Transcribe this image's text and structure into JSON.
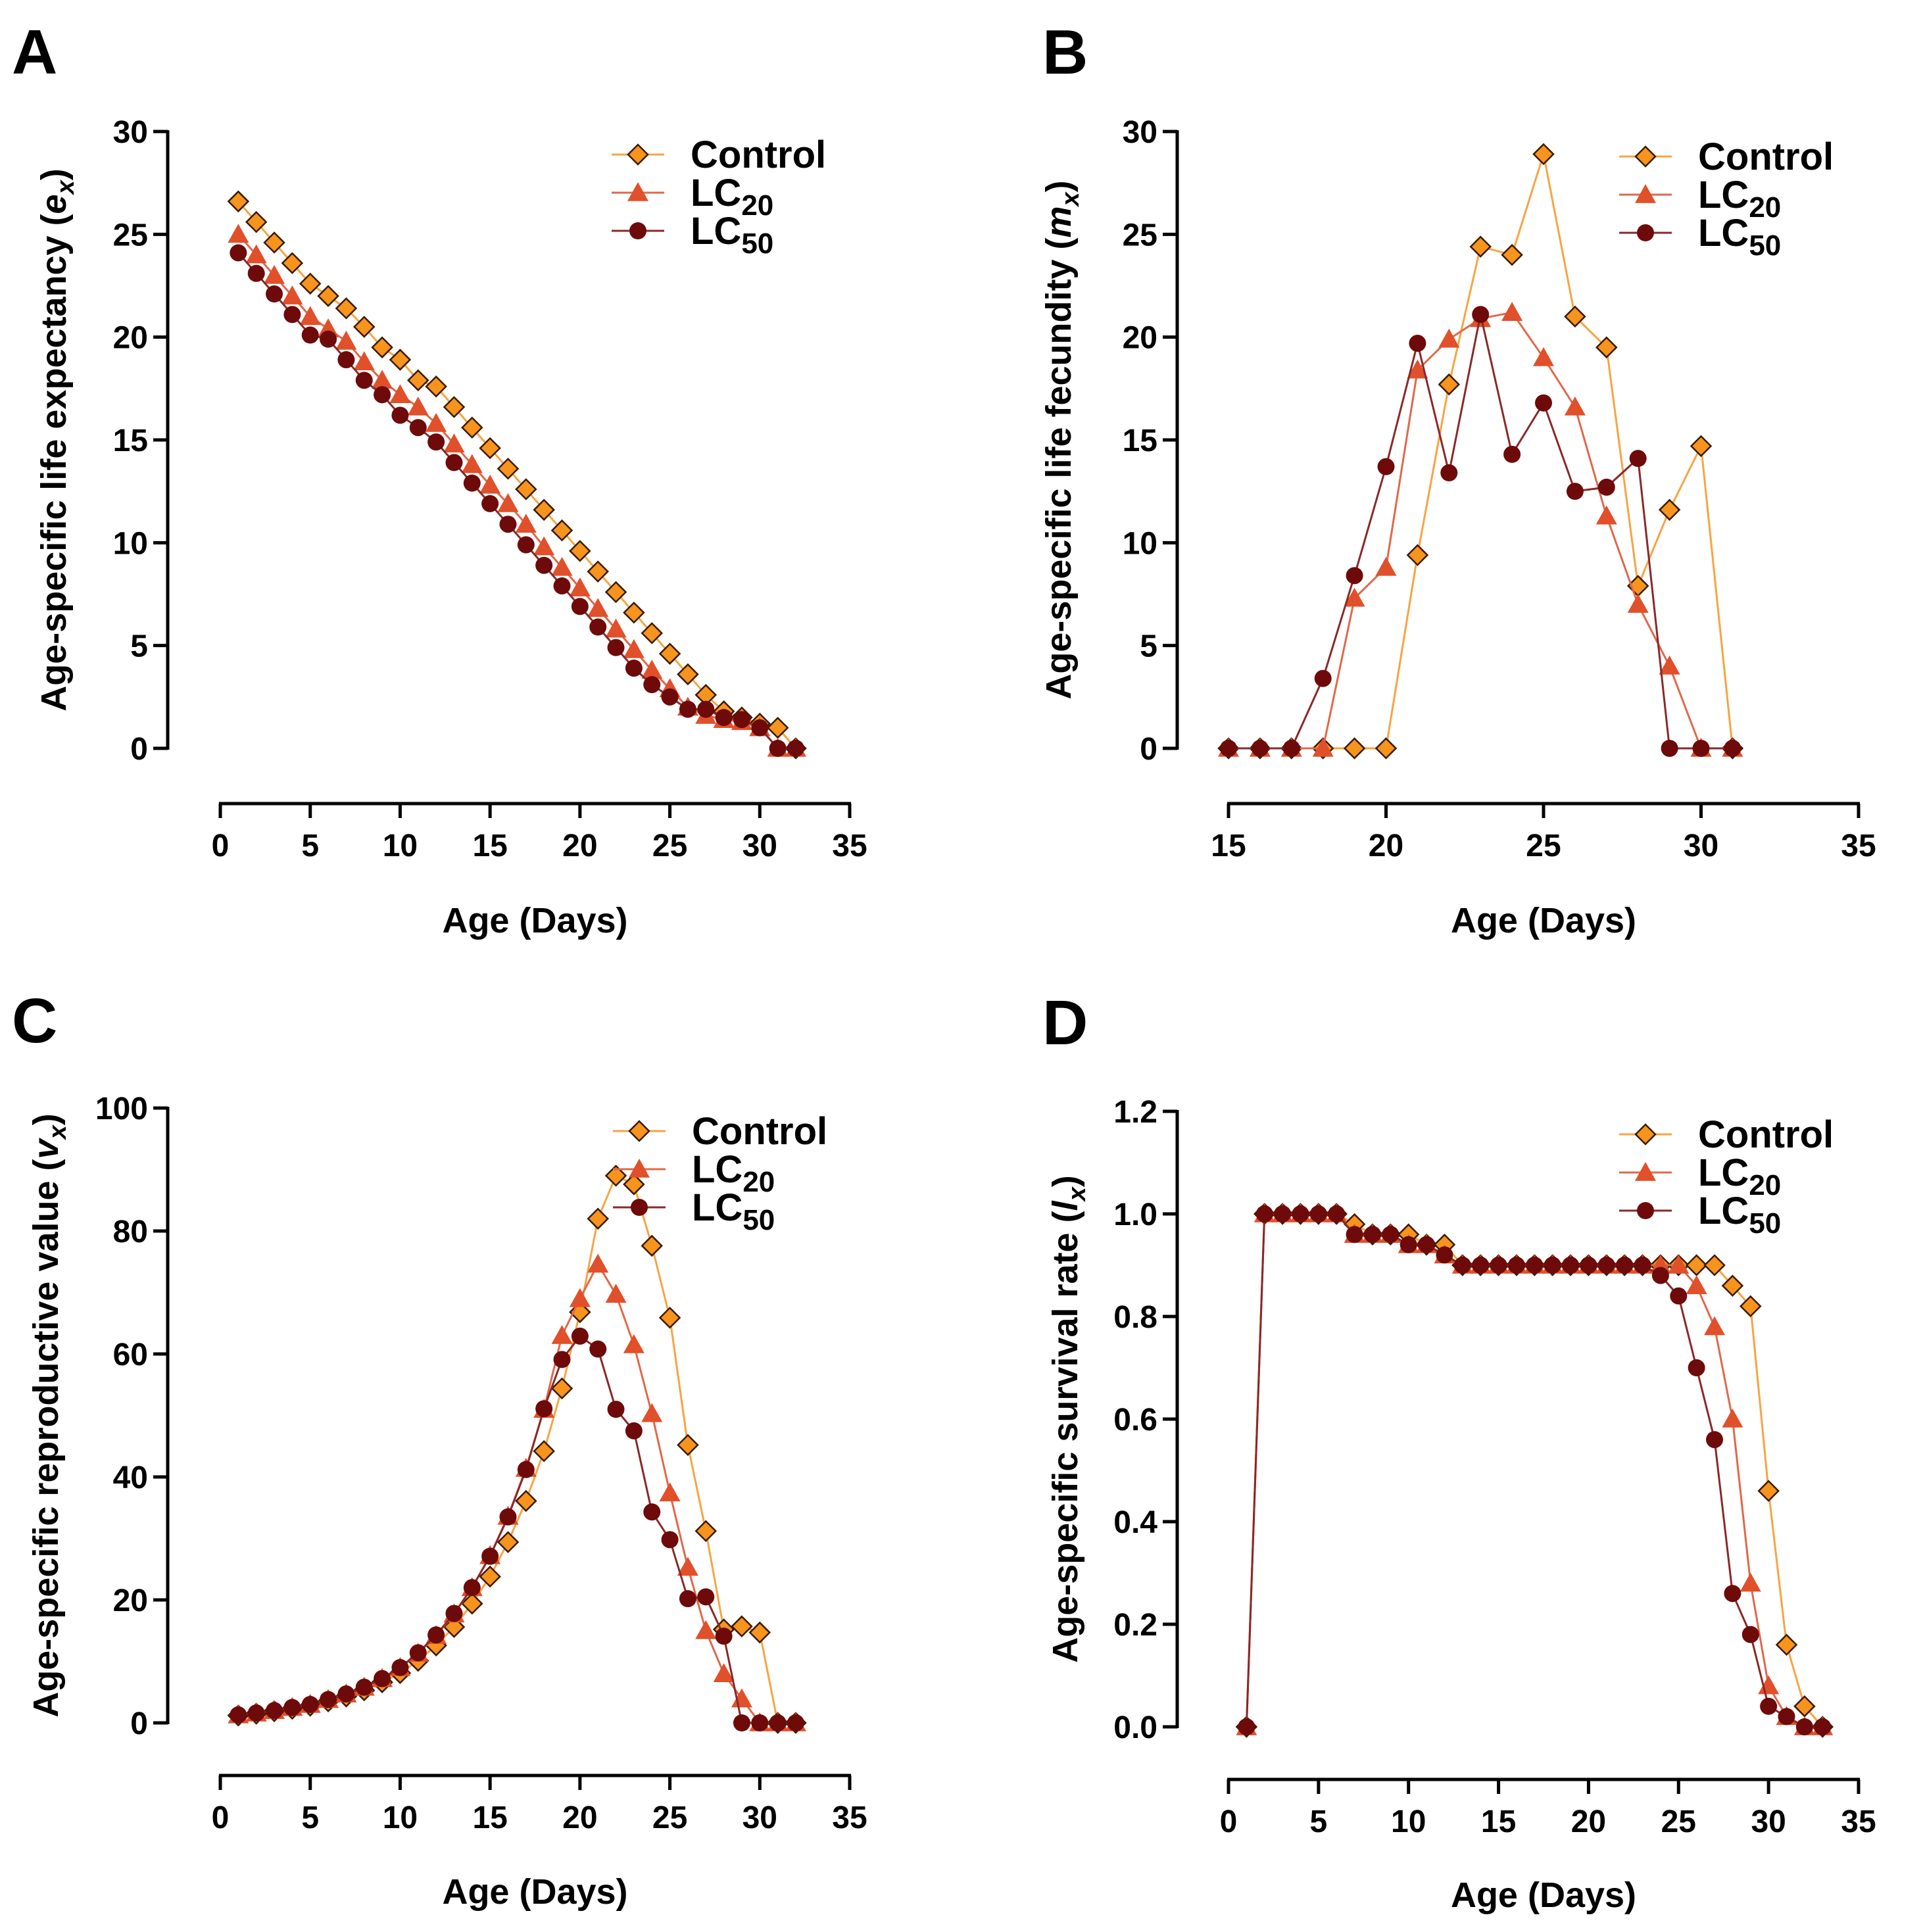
{
  "colors": {
    "control_fill": "#F7941D",
    "control_line": "#F7A443",
    "lc20_fill": "#E0502A",
    "lc20_line": "#E0684A",
    "lc50_fill": "#6E0A0A",
    "lc50_line": "#8A2828",
    "marker_edge": "#3A1A00"
  },
  "chart_data": [
    {
      "id": "A",
      "panel_label": "A",
      "type": "line",
      "title": "",
      "ylabel_main": "Age-specific life expectancy (",
      "ylabel_var": "e",
      "ylabel_sub": "x",
      "ylabel_close": ")",
      "xlabel": "Age (Days)",
      "xlim": [
        0,
        35
      ],
      "ylim": [
        0,
        30
      ],
      "xticks": [
        "0",
        "5",
        "10",
        "15",
        "20",
        "25",
        "30",
        "35"
      ],
      "yticks": [
        "0",
        "5",
        "10",
        "15",
        "20",
        "25",
        "30"
      ],
      "legend": [
        {
          "name": "Control",
          "sub": ""
        },
        {
          "name": "LC",
          "sub": "20"
        },
        {
          "name": "LC",
          "sub": "50"
        }
      ],
      "series": [
        {
          "name": "Control",
          "marker": "diamond",
          "x": [
            1,
            2,
            3,
            4,
            5,
            6,
            7,
            8,
            9,
            10,
            11,
            12,
            13,
            14,
            15,
            16,
            17,
            18,
            19,
            20,
            21,
            22,
            23,
            24,
            25,
            26,
            27,
            28,
            29,
            30,
            31,
            32
          ],
          "y": [
            26.6,
            25.6,
            24.6,
            23.6,
            22.6,
            22.0,
            21.4,
            20.5,
            19.5,
            18.9,
            17.9,
            17.6,
            16.6,
            15.6,
            14.6,
            13.6,
            12.6,
            11.6,
            10.6,
            9.6,
            8.6,
            7.6,
            6.6,
            5.6,
            4.6,
            3.6,
            2.6,
            1.8,
            1.5,
            1.2,
            1.0,
            0
          ]
        },
        {
          "name": "LC20",
          "marker": "triangle",
          "x": [
            1,
            2,
            3,
            4,
            5,
            6,
            7,
            8,
            9,
            10,
            11,
            12,
            13,
            14,
            15,
            16,
            17,
            18,
            19,
            20,
            21,
            22,
            23,
            24,
            25,
            26,
            27,
            28,
            29,
            30,
            31,
            32
          ],
          "y": [
            25.0,
            24.0,
            23.0,
            22.0,
            21.0,
            20.4,
            19.8,
            18.8,
            17.9,
            17.2,
            16.6,
            15.8,
            14.8,
            13.8,
            12.8,
            11.9,
            10.9,
            9.8,
            8.8,
            7.8,
            6.8,
            5.8,
            4.8,
            3.8,
            2.9,
            2.0,
            1.6,
            1.4,
            1.3,
            1.0,
            0,
            0
          ]
        },
        {
          "name": "LC50",
          "marker": "circle",
          "x": [
            1,
            2,
            3,
            4,
            5,
            6,
            7,
            8,
            9,
            10,
            11,
            12,
            13,
            14,
            15,
            16,
            17,
            18,
            19,
            20,
            21,
            22,
            23,
            24,
            25,
            26,
            27,
            28,
            29,
            30,
            31,
            32
          ],
          "y": [
            24.1,
            23.1,
            22.1,
            21.1,
            20.1,
            19.9,
            18.9,
            17.9,
            17.2,
            16.2,
            15.6,
            14.9,
            13.9,
            12.9,
            11.9,
            10.9,
            9.9,
            8.9,
            7.9,
            6.9,
            5.9,
            4.9,
            3.9,
            3.1,
            2.5,
            1.9,
            1.9,
            1.5,
            1.4,
            1.0,
            0,
            0
          ]
        }
      ]
    },
    {
      "id": "B",
      "panel_label": "B",
      "type": "line",
      "title": "",
      "ylabel_main": "Age-specific life fecundity (",
      "ylabel_var": "m",
      "ylabel_sub": "x",
      "ylabel_close": ")",
      "xlabel": "Age (Days)",
      "xlim": [
        15,
        35
      ],
      "ylim": [
        0,
        30
      ],
      "xticks": [
        "15",
        "20",
        "25",
        "30",
        "35"
      ],
      "yticks": [
        "0",
        "5",
        "10",
        "15",
        "20",
        "25",
        "30"
      ],
      "legend": [
        {
          "name": "Control",
          "sub": ""
        },
        {
          "name": "LC",
          "sub": "20"
        },
        {
          "name": "LC",
          "sub": "50"
        }
      ],
      "series": [
        {
          "name": "Control",
          "marker": "diamond",
          "x": [
            15,
            16,
            17,
            18,
            19,
            20,
            21,
            22,
            23,
            24,
            25,
            26,
            27,
            28,
            29,
            30,
            31
          ],
          "y": [
            0,
            0,
            0,
            0,
            0,
            0,
            9.4,
            17.7,
            24.4,
            24.0,
            28.9,
            21.0,
            19.5,
            7.9,
            11.6,
            14.7,
            0
          ]
        },
        {
          "name": "LC20",
          "marker": "triangle",
          "x": [
            15,
            16,
            17,
            18,
            19,
            20,
            21,
            22,
            23,
            24,
            25,
            26,
            27,
            28,
            29,
            30,
            31
          ],
          "y": [
            0,
            0,
            0,
            0,
            7.3,
            8.8,
            18.4,
            19.9,
            20.9,
            21.2,
            19.0,
            16.6,
            11.3,
            7.0,
            4.0,
            0,
            0
          ]
        },
        {
          "name": "LC50",
          "marker": "circle",
          "x": [
            15,
            16,
            17,
            18,
            19,
            20,
            21,
            22,
            23,
            24,
            25,
            26,
            27,
            28,
            29,
            30,
            31
          ],
          "y": [
            0,
            0,
            0,
            3.4,
            8.4,
            13.7,
            19.7,
            13.4,
            21.1,
            14.3,
            16.8,
            12.5,
            12.7,
            14.1,
            0,
            0,
            0
          ]
        }
      ]
    },
    {
      "id": "C",
      "panel_label": "C",
      "type": "line",
      "title": "",
      "ylabel_main": "Age-specific reproductive value (",
      "ylabel_var": "v",
      "ylabel_sub": "x",
      "ylabel_close": ")",
      "xlabel": "Age (Days)",
      "xlim": [
        0,
        35
      ],
      "ylim": [
        0,
        100
      ],
      "xticks": [
        "0",
        "5",
        "10",
        "15",
        "20",
        "25",
        "30",
        "35"
      ],
      "yticks": [
        "0",
        "20",
        "40",
        "60",
        "80",
        "100"
      ],
      "legend": [
        {
          "name": "Control",
          "sub": ""
        },
        {
          "name": "LC",
          "sub": "20"
        },
        {
          "name": "LC",
          "sub": "50"
        }
      ],
      "series": [
        {
          "name": "Control",
          "marker": "diamond",
          "x": [
            1,
            2,
            3,
            4,
            5,
            6,
            7,
            8,
            9,
            10,
            11,
            12,
            13,
            14,
            15,
            16,
            17,
            18,
            19,
            20,
            21,
            22,
            23,
            24,
            25,
            26,
            27,
            28,
            29,
            30,
            31,
            32
          ],
          "y": [
            1.2,
            1.5,
            1.9,
            2.3,
            2.8,
            3.5,
            4.3,
            5.3,
            6.6,
            8.1,
            10.1,
            12.6,
            15.6,
            19.4,
            23.8,
            29.4,
            36.1,
            44.2,
            54.4,
            66.8,
            82.0,
            89.0,
            87.6,
            77.6,
            65.9,
            45.2,
            31.2,
            15.2,
            15.7,
            14.7,
            0,
            0
          ]
        },
        {
          "name": "LC20",
          "marker": "triangle",
          "x": [
            1,
            2,
            3,
            4,
            5,
            6,
            7,
            8,
            9,
            10,
            11,
            12,
            13,
            14,
            15,
            16,
            17,
            18,
            19,
            20,
            21,
            22,
            23,
            24,
            25,
            26,
            27,
            28,
            29,
            30,
            31,
            32
          ],
          "y": [
            1.3,
            1.6,
            2.0,
            2.5,
            3.0,
            3.8,
            4.7,
            5.8,
            7.2,
            9.0,
            11.3,
            14.2,
            17.7,
            22.0,
            27.2,
            33.6,
            41.4,
            51.0,
            63.0,
            69.0,
            74.6,
            69.7,
            61.5,
            50.3,
            37.4,
            25.3,
            15.0,
            8.0,
            3.9,
            0,
            0,
            0
          ]
        },
        {
          "name": "LC50",
          "marker": "circle",
          "x": [
            1,
            2,
            3,
            4,
            5,
            6,
            7,
            8,
            9,
            10,
            11,
            12,
            13,
            14,
            15,
            16,
            17,
            18,
            19,
            20,
            21,
            22,
            23,
            24,
            25,
            26,
            27,
            28,
            29,
            30,
            31,
            32
          ],
          "y": [
            1.3,
            1.6,
            2.0,
            2.5,
            3.0,
            3.8,
            4.7,
            5.8,
            7.2,
            9.0,
            11.4,
            14.3,
            17.8,
            22.0,
            27.1,
            33.5,
            41.2,
            51.1,
            59.1,
            62.9,
            60.8,
            51.0,
            47.5,
            34.3,
            29.8,
            20.2,
            20.5,
            14.1,
            0,
            0,
            0,
            0
          ]
        }
      ]
    },
    {
      "id": "D",
      "panel_label": "D",
      "type": "line",
      "title": "",
      "ylabel_main": "Age-specific survival rate (",
      "ylabel_var": "l",
      "ylabel_sub": "x",
      "ylabel_close": ")",
      "xlabel": "Age (Days)",
      "xlim": [
        0,
        35
      ],
      "ylim": [
        0,
        1.2
      ],
      "xticks": [
        "0",
        "5",
        "10",
        "15",
        "20",
        "25",
        "30",
        "35"
      ],
      "yticks": [
        "0.0",
        "0.2",
        "0.4",
        "0.6",
        "0.8",
        "1.0",
        "1.2"
      ],
      "legend": [
        {
          "name": "Control",
          "sub": ""
        },
        {
          "name": "LC",
          "sub": "20"
        },
        {
          "name": "LC",
          "sub": "50"
        }
      ],
      "series": [
        {
          "name": "Control",
          "marker": "diamond",
          "x": [
            1,
            2,
            3,
            4,
            5,
            6,
            7,
            8,
            9,
            10,
            11,
            12,
            13,
            14,
            15,
            16,
            17,
            18,
            19,
            20,
            21,
            22,
            23,
            24,
            25,
            26,
            27,
            28,
            29,
            30,
            31,
            32,
            33
          ],
          "y": [
            0,
            1.0,
            1.0,
            1.0,
            1.0,
            1.0,
            0.98,
            0.96,
            0.96,
            0.96,
            0.94,
            0.94,
            0.9,
            0.9,
            0.9,
            0.9,
            0.9,
            0.9,
            0.9,
            0.9,
            0.9,
            0.9,
            0.9,
            0.9,
            0.9,
            0.9,
            0.9,
            0.86,
            0.82,
            0.46,
            0.16,
            0.04,
            0
          ]
        },
        {
          "name": "LC20",
          "marker": "triangle",
          "x": [
            1,
            2,
            3,
            4,
            5,
            6,
            7,
            8,
            9,
            10,
            11,
            12,
            13,
            14,
            15,
            16,
            17,
            18,
            19,
            20,
            21,
            22,
            23,
            24,
            25,
            26,
            27,
            28,
            29,
            30,
            31,
            32,
            33
          ],
          "y": [
            0,
            1.0,
            1.0,
            1.0,
            1.0,
            1.0,
            0.96,
            0.96,
            0.96,
            0.94,
            0.94,
            0.92,
            0.9,
            0.9,
            0.9,
            0.9,
            0.9,
            0.9,
            0.9,
            0.9,
            0.9,
            0.9,
            0.9,
            0.9,
            0.9,
            0.86,
            0.78,
            0.6,
            0.28,
            0.08,
            0.02,
            0,
            0
          ]
        },
        {
          "name": "LC50",
          "marker": "circle",
          "x": [
            1,
            2,
            3,
            4,
            5,
            6,
            7,
            8,
            9,
            10,
            11,
            12,
            13,
            14,
            15,
            16,
            17,
            18,
            19,
            20,
            21,
            22,
            23,
            24,
            25,
            26,
            27,
            28,
            29,
            30,
            31,
            32,
            33
          ],
          "y": [
            0,
            1.0,
            1.0,
            1.0,
            1.0,
            1.0,
            0.96,
            0.96,
            0.96,
            0.94,
            0.94,
            0.92,
            0.9,
            0.9,
            0.9,
            0.9,
            0.9,
            0.9,
            0.9,
            0.9,
            0.9,
            0.9,
            0.9,
            0.88,
            0.84,
            0.7,
            0.56,
            0.26,
            0.18,
            0.04,
            0.02,
            0,
            0
          ]
        }
      ]
    }
  ]
}
